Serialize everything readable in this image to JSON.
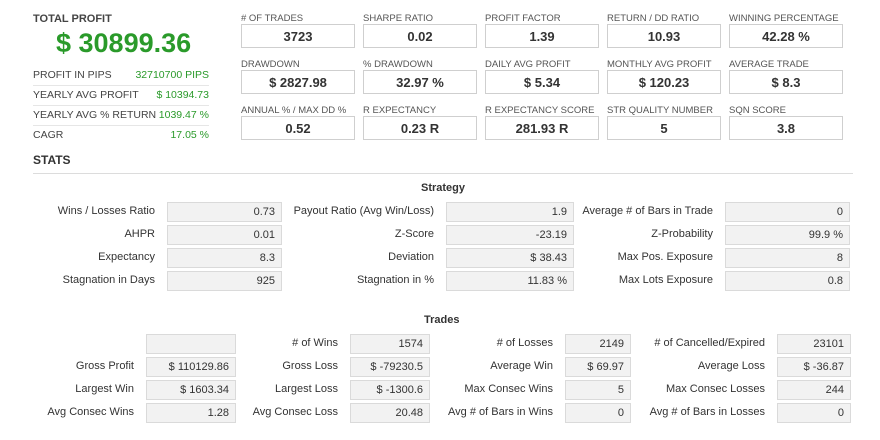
{
  "summary": {
    "total_profit_label": "TOTAL PROFIT",
    "total_profit_value": "$ 30899.36",
    "rows": [
      {
        "label": "PROFIT IN PIPS",
        "value": "32710700 PIPS"
      },
      {
        "label": "YEARLY AVG PROFIT",
        "value": "$ 10394.73"
      },
      {
        "label": "YEARLY AVG % RETURN",
        "value": "1039.47 %"
      },
      {
        "label": "CAGR",
        "value": "17.05 %"
      }
    ]
  },
  "metrics": [
    {
      "label": "# OF TRADES",
      "value": "3723"
    },
    {
      "label": "SHARPE RATIO",
      "value": "0.02"
    },
    {
      "label": "PROFIT FACTOR",
      "value": "1.39"
    },
    {
      "label": "RETURN / DD RATIO",
      "value": "10.93"
    },
    {
      "label": "WINNING PERCENTAGE",
      "value": "42.28 %"
    },
    {
      "label": "DRAWDOWN",
      "value": "$ 2827.98"
    },
    {
      "label": "% DRAWDOWN",
      "value": "32.97 %"
    },
    {
      "label": "DAILY AVG PROFIT",
      "value": "$ 5.34"
    },
    {
      "label": "MONTHLY AVG PROFIT",
      "value": "$ 120.23"
    },
    {
      "label": "AVERAGE TRADE",
      "value": "$ 8.3"
    },
    {
      "label": "ANNUAL % / MAX DD %",
      "value": "0.52"
    },
    {
      "label": "R EXPECTANCY",
      "value": "0.23 R"
    },
    {
      "label": "R EXPECTANCY SCORE",
      "value": "281.93 R"
    },
    {
      "label": "STR QUALITY NUMBER",
      "value": "5"
    },
    {
      "label": "SQN SCORE",
      "value": "3.8"
    }
  ],
  "stats_title": "STATS",
  "strategy": {
    "title": "Strategy",
    "rows": [
      [
        {
          "label": "Wins / Losses Ratio",
          "value": "0.73"
        },
        {
          "label": "Payout Ratio (Avg Win/Loss)",
          "value": "1.9"
        },
        {
          "label": "Average # of Bars in Trade",
          "value": "0"
        }
      ],
      [
        {
          "label": "AHPR",
          "value": "0.01"
        },
        {
          "label": "Z-Score",
          "value": "-23.19"
        },
        {
          "label": "Z-Probability",
          "value": "99.9 %"
        }
      ],
      [
        {
          "label": "Expectancy",
          "value": "8.3"
        },
        {
          "label": "Deviation",
          "value": "$ 38.43"
        },
        {
          "label": "Max Pos. Exposure",
          "value": "8"
        }
      ],
      [
        {
          "label": "Stagnation in Days",
          "value": "925"
        },
        {
          "label": "Stagnation in %",
          "value": "11.83 %"
        },
        {
          "label": "Max Lots Exposure",
          "value": "0.8"
        }
      ]
    ]
  },
  "trades": {
    "title": "Trades",
    "rows": [
      [
        {
          "label": "",
          "value": ""
        },
        {
          "label": "# of Wins",
          "value": "1574"
        },
        {
          "label": "# of Losses",
          "value": "2149"
        },
        {
          "label": "# of Cancelled/Expired",
          "value": "23101"
        }
      ],
      [
        {
          "label": "Gross Profit",
          "value": "$ 110129.86"
        },
        {
          "label": "Gross Loss",
          "value": "$ -79230.5"
        },
        {
          "label": "Average Win",
          "value": "$ 69.97"
        },
        {
          "label": "Average Loss",
          "value": "$ -36.87"
        }
      ],
      [
        {
          "label": "Largest Win",
          "value": "$ 1603.34"
        },
        {
          "label": "Largest Loss",
          "value": "$ -1300.6"
        },
        {
          "label": "Max Consec Wins",
          "value": "5"
        },
        {
          "label": "Max Consec Losses",
          "value": "244"
        }
      ],
      [
        {
          "label": "Avg Consec Wins",
          "value": "1.28"
        },
        {
          "label": "Avg Consec Loss",
          "value": "20.48"
        },
        {
          "label": "Avg # of Bars in Wins",
          "value": "0"
        },
        {
          "label": "Avg # of Bars in Losses",
          "value": "0"
        }
      ]
    ]
  }
}
